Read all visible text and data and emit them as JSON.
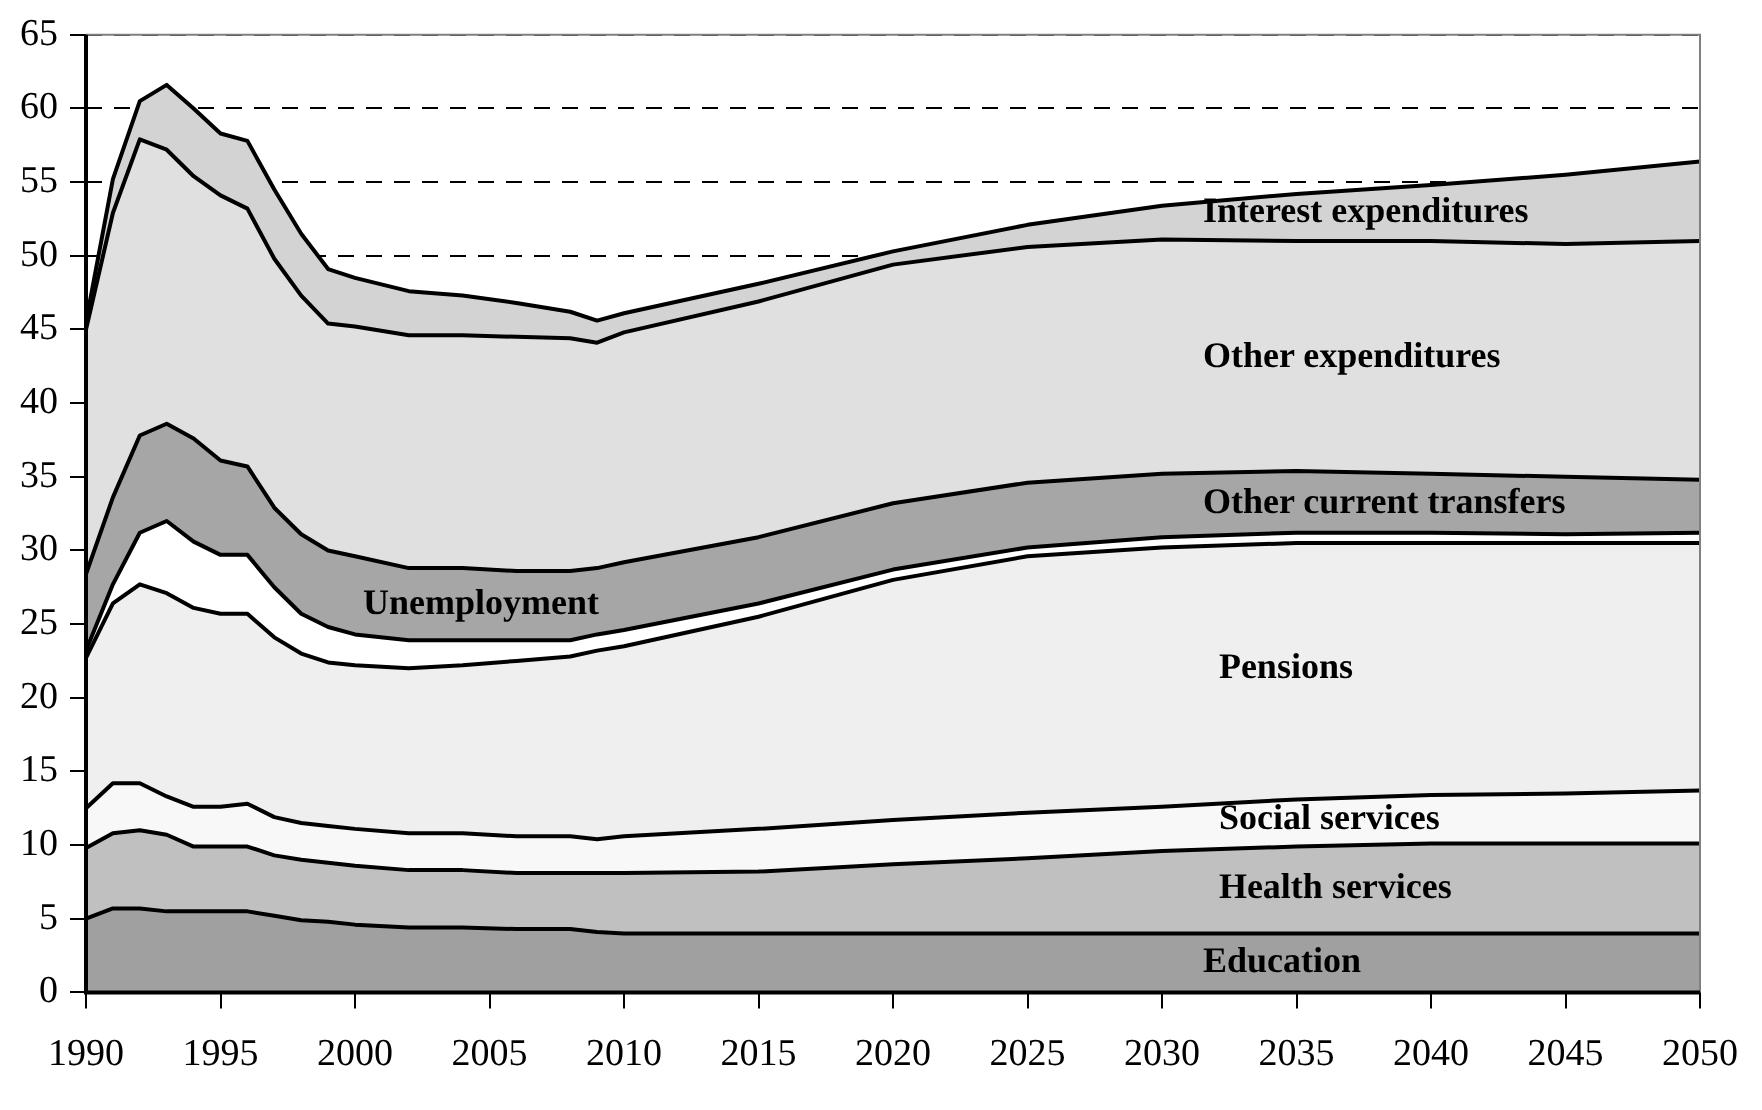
{
  "chart_data": {
    "type": "area",
    "stacked": true,
    "legend": false,
    "grid": "y",
    "marker": "none",
    "line_style": "solid",
    "x": [
      1990,
      1991,
      1992,
      1993,
      1994,
      1995,
      1996,
      1997,
      1998,
      1999,
      2000,
      2002,
      2004,
      2006,
      2008,
      2009,
      2010,
      2015,
      2020,
      2025,
      2030,
      2035,
      2040,
      2045,
      2050
    ],
    "xlim": [
      1990,
      2050
    ],
    "xticks": [
      1990,
      1995,
      2000,
      2005,
      2010,
      2015,
      2020,
      2025,
      2030,
      2035,
      2040,
      2045,
      2050
    ],
    "ylim": [
      0,
      65
    ],
    "yticks": [
      0,
      5,
      10,
      15,
      20,
      25,
      30,
      35,
      40,
      45,
      50,
      55,
      60,
      65
    ],
    "series": [
      {
        "name": "Education",
        "color": "#a0a0a0",
        "values": [
          5.0,
          5.7,
          5.7,
          5.5,
          5.5,
          5.5,
          5.5,
          5.2,
          4.9,
          4.8,
          4.6,
          4.4,
          4.4,
          4.3,
          4.3,
          4.1,
          4.0,
          4.0,
          4.0,
          4.0,
          4.0,
          4.0,
          4.0,
          4.0,
          4.0
        ]
      },
      {
        "name": "Health services",
        "color": "#c0c0c0",
        "values": [
          4.8,
          5.1,
          5.3,
          5.2,
          4.4,
          4.4,
          4.4,
          4.1,
          4.1,
          4.0,
          4.0,
          3.9,
          3.9,
          3.8,
          3.8,
          4.0,
          4.1,
          4.2,
          4.7,
          5.1,
          5.6,
          5.9,
          6.1,
          6.1,
          6.1
        ]
      },
      {
        "name": "Social services",
        "color": "#f8f8f8",
        "values": [
          2.7,
          3.4,
          3.2,
          2.6,
          2.7,
          2.7,
          2.9,
          2.6,
          2.5,
          2.5,
          2.5,
          2.5,
          2.5,
          2.5,
          2.5,
          2.3,
          2.5,
          2.9,
          3.0,
          3.1,
          3.0,
          3.2,
          3.3,
          3.4,
          3.6
        ]
      },
      {
        "name": "Pensions",
        "color": "#efefef",
        "values": [
          10.2,
          12.2,
          13.5,
          13.8,
          13.5,
          13.1,
          12.9,
          12.2,
          11.5,
          11.1,
          11.1,
          11.2,
          11.4,
          11.9,
          12.2,
          12.8,
          12.9,
          14.4,
          16.3,
          17.4,
          17.6,
          17.4,
          17.1,
          17.0,
          16.8
        ]
      },
      {
        "name": "Unemployment",
        "color": "#ffffff",
        "values": [
          0.5,
          1.3,
          3.5,
          4.9,
          4.5,
          4.0,
          4.0,
          3.4,
          2.7,
          2.4,
          2.1,
          1.9,
          1.7,
          1.4,
          1.1,
          1.1,
          1.1,
          0.9,
          0.7,
          0.6,
          0.7,
          0.7,
          0.7,
          0.6,
          0.7
        ]
      },
      {
        "name": "Other current transfers",
        "color": "#a6a6a6",
        "values": [
          5.2,
          5.9,
          6.6,
          6.6,
          7.0,
          6.4,
          6.0,
          5.4,
          5.4,
          5.2,
          5.3,
          4.9,
          4.9,
          4.7,
          4.7,
          4.5,
          4.6,
          4.5,
          4.5,
          4.4,
          4.3,
          4.2,
          4.0,
          3.9,
          3.6
        ]
      },
      {
        "name": "Other expenditures",
        "color": "#e0e0e0",
        "values": [
          16.6,
          19.3,
          20.1,
          18.6,
          17.8,
          18.0,
          17.5,
          16.9,
          16.2,
          15.4,
          15.6,
          15.8,
          15.8,
          15.9,
          15.8,
          15.3,
          15.6,
          16.0,
          16.2,
          16.0,
          15.9,
          15.6,
          15.8,
          15.8,
          16.2
        ]
      },
      {
        "name": "Interest expenditures",
        "color": "#d3d3d3",
        "values": [
          0.5,
          2.3,
          2.6,
          4.4,
          4.6,
          4.2,
          4.6,
          4.7,
          4.2,
          3.7,
          3.3,
          3.0,
          2.7,
          2.3,
          1.8,
          1.5,
          1.3,
          1.2,
          0.9,
          1.5,
          2.3,
          3.2,
          3.8,
          4.7,
          5.4
        ]
      }
    ]
  }
}
